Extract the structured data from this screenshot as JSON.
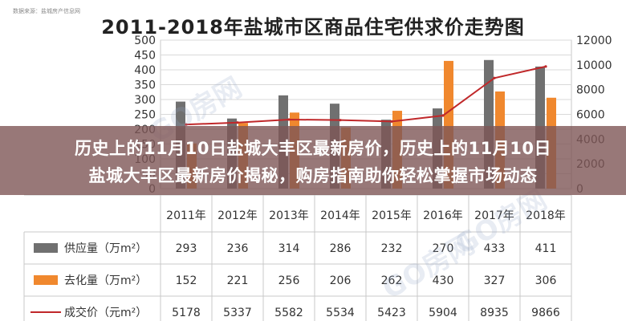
{
  "source_label": "数据来源：盐城房产信息网",
  "chart_data": {
    "type": "bar",
    "title": "2011-2018年盐城市区商品住宅供求价走势图",
    "categories": [
      "2011年",
      "2012年",
      "2013年",
      "2014年",
      "2015年",
      "2016年",
      "2017年",
      "2018年"
    ],
    "series": [
      {
        "name": "供应量（万m²）",
        "type": "bar",
        "axis": "left",
        "color": "#707070",
        "values": [
          293,
          236,
          314,
          286,
          232,
          270,
          433,
          411
        ]
      },
      {
        "name": "去化量（万m²）",
        "type": "bar",
        "axis": "left",
        "color": "#f0882e",
        "values": [
          152,
          221,
          256,
          206,
          262,
          430,
          327,
          306
        ]
      },
      {
        "name": "成交价（元m²）",
        "type": "line",
        "axis": "right",
        "color": "#c0282a",
        "values": [
          5178,
          5337,
          5582,
          5534,
          5423,
          5904,
          8935,
          9866
        ]
      }
    ],
    "y_left": {
      "min": 0,
      "max": 500,
      "ticks": [
        0,
        50,
        100,
        150,
        200,
        250,
        300,
        350,
        400,
        450,
        500
      ]
    },
    "y_right": {
      "min": 0,
      "max": 12000,
      "ticks": [
        0,
        2000,
        4000,
        6000,
        8000,
        10000,
        12000
      ]
    },
    "grid": true,
    "table": true
  },
  "watermarks": [
    "GO房网",
    "GO房网",
    "GO房网"
  ],
  "banner": {
    "line1": "历史上的11月10日盐城大丰区最新房价，历史上的11月10日",
    "line2": "盐城大丰区最新房价揭秘，购房指南助你轻松掌握市场动态"
  }
}
